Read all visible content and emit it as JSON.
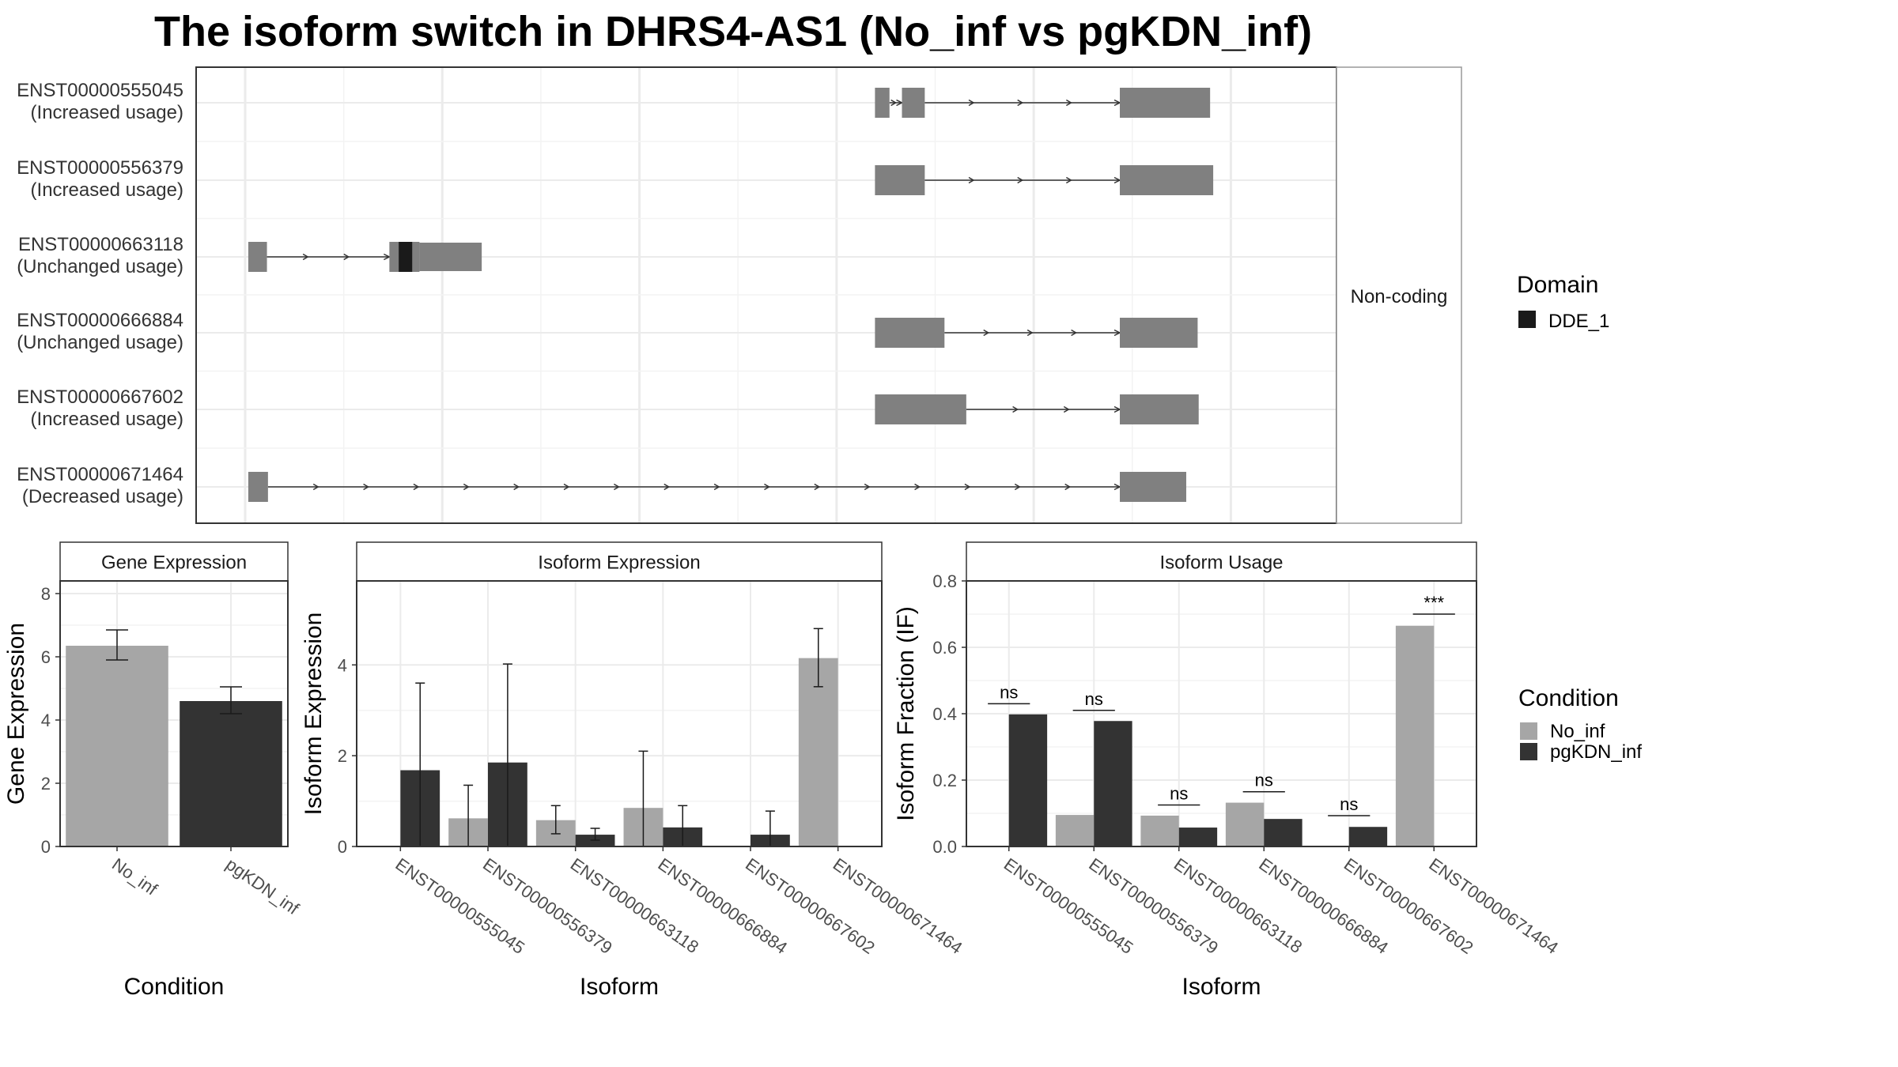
{
  "title": "The isoform switch in DHRS4-AS1 (No_inf vs pgKDN_inf)",
  "colors": {
    "exon": "#808080",
    "domain": "#1a1a1a",
    "no_inf": "#a6a6a6",
    "pgkdn_inf": "#333333",
    "grid": "#ebebeb",
    "panel_border": "#333333",
    "strip_fill": "#ffffff"
  },
  "structure_panel": {
    "facet_label": "Non-coding",
    "genome_range": [
      0,
      1000
    ],
    "transcripts": [
      {
        "id": "ENST00000555045",
        "usage": "(Increased usage)",
        "exons": [
          [
            607,
            621
          ],
          [
            633,
            655
          ],
          [
            843,
            930
          ]
        ],
        "domains": []
      },
      {
        "id": "ENST00000556379",
        "usage": "(Increased usage)",
        "exons": [
          [
            607,
            655
          ],
          [
            843,
            933
          ]
        ],
        "domains": []
      },
      {
        "id": "ENST00000663118",
        "usage": "(Unchanged usage)",
        "exons": [
          [
            3,
            21
          ],
          [
            139,
            168
          ],
          [
            168,
            228
          ]
        ],
        "domains": [
          [
            148,
            161
          ]
        ]
      },
      {
        "id": "ENST00000666884",
        "usage": "(Unchanged usage)",
        "exons": [
          [
            607,
            674
          ],
          [
            843,
            918
          ]
        ],
        "domains": []
      },
      {
        "id": "ENST00000667602",
        "usage": "(Increased usage)",
        "exons": [
          [
            607,
            695
          ],
          [
            843,
            919
          ]
        ],
        "domains": []
      },
      {
        "id": "ENST00000671464",
        "usage": "(Decreased usage)",
        "exons": [
          [
            3,
            22
          ],
          [
            843,
            907
          ]
        ],
        "domains": []
      }
    ]
  },
  "domain_legend": {
    "title": "Domain",
    "items": [
      "DDE_1"
    ]
  },
  "condition_legend": {
    "title": "Condition",
    "items": [
      "No_inf",
      "pgKDN_inf"
    ]
  },
  "chart_data": [
    {
      "type": "bar",
      "title": "Gene Expression",
      "xlabel": "Condition",
      "ylabel": "Gene Expression",
      "categories": [
        "No_inf",
        "pgKDN_inf"
      ],
      "values": [
        6.35,
        4.6
      ],
      "err_low": [
        5.9,
        4.2
      ],
      "err_high": [
        6.85,
        5.05
      ],
      "ylim": [
        0,
        8.4
      ],
      "yticks": [
        0,
        2,
        4,
        6,
        8
      ]
    },
    {
      "type": "bar",
      "title": "Isoform Expression",
      "xlabel": "Isoform",
      "ylabel": "Isoform Expression",
      "categories": [
        "ENST00000555045",
        "ENST00000556379",
        "ENST00000663118",
        "ENST00000666884",
        "ENST00000667602",
        "ENST00000671464"
      ],
      "series": [
        {
          "name": "No_inf",
          "values": [
            0.0,
            0.62,
            0.58,
            0.85,
            0.0,
            4.15
          ],
          "err_low": [
            0.0,
            0.0,
            0.28,
            0.0,
            0.0,
            3.52
          ],
          "err_high": [
            0.0,
            1.35,
            0.9,
            2.1,
            0.0,
            4.8
          ]
        },
        {
          "name": "pgKDN_inf",
          "values": [
            1.68,
            1.85,
            0.26,
            0.42,
            0.26,
            0.0
          ],
          "err_low": [
            0.0,
            0.0,
            0.14,
            0.0,
            0.0,
            0.0
          ],
          "err_high": [
            3.6,
            4.02,
            0.4,
            0.9,
            0.78,
            0.0
          ]
        }
      ],
      "ylim": [
        0,
        5.85
      ],
      "yticks": [
        0,
        2,
        4
      ]
    },
    {
      "type": "bar",
      "title": "Isoform Usage",
      "xlabel": "Isoform",
      "ylabel": "Isoform Fraction (IF)",
      "categories": [
        "ENST00000555045",
        "ENST00000556379",
        "ENST00000663118",
        "ENST00000666884",
        "ENST00000667602",
        "ENST00000671464"
      ],
      "series": [
        {
          "name": "No_inf",
          "values": [
            0.0,
            0.095,
            0.093,
            0.132,
            0.0,
            0.665
          ]
        },
        {
          "name": "pgKDN_inf",
          "values": [
            0.398,
            0.378,
            0.057,
            0.083,
            0.059,
            0.0
          ]
        }
      ],
      "significance": [
        "ns",
        "ns",
        "ns",
        "ns",
        "ns",
        "***"
      ],
      "sig_height": [
        0.43,
        0.41,
        0.125,
        0.165,
        0.093,
        0.7
      ],
      "ylim": [
        0,
        0.8
      ],
      "yticks": [
        0.0,
        0.2,
        0.4,
        0.6,
        0.8
      ]
    }
  ]
}
